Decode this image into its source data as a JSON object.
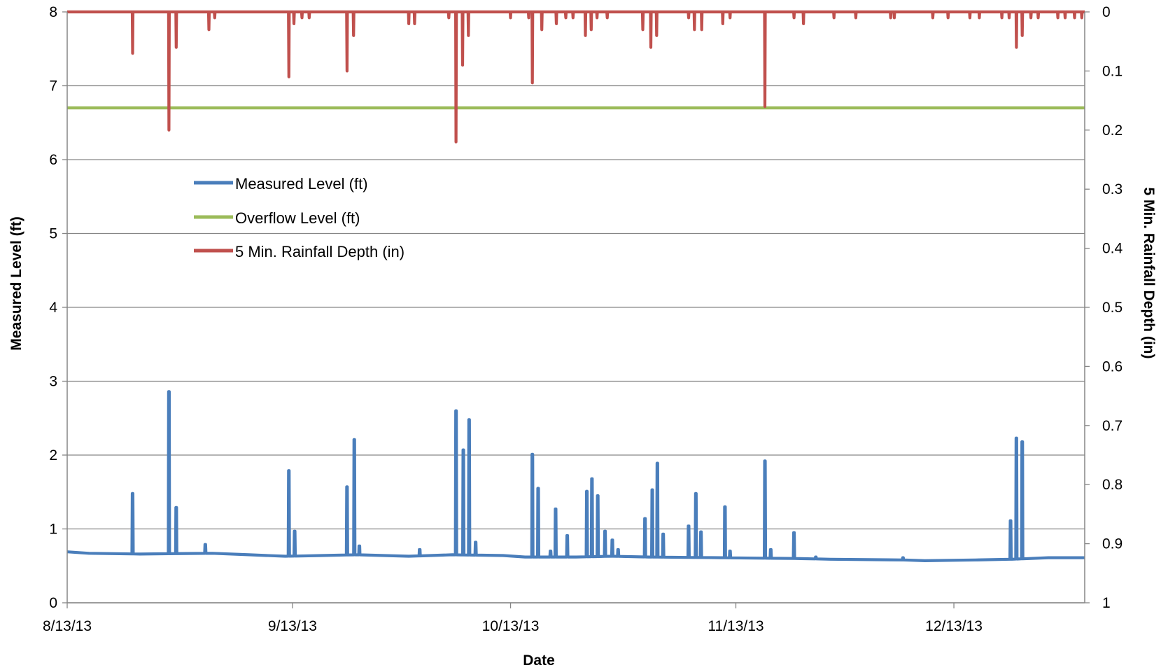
{
  "chart_data": {
    "type": "line",
    "xlabel": "Date",
    "ylabel": "Measured Level (ft)",
    "y2label": "5 Min. Rainfall Depth (in)",
    "x_ticks": [
      "8/13/13",
      "9/13/13",
      "10/13/13",
      "11/13/13",
      "12/13/13"
    ],
    "x_tick_days": [
      0,
      31,
      61,
      92,
      122
    ],
    "xlim_days": [
      0,
      140
    ],
    "ylim": [
      0,
      8
    ],
    "y_ticks": [
      "0",
      "1",
      "2",
      "3",
      "4",
      "5",
      "6",
      "7",
      "8"
    ],
    "y2lim": [
      1,
      0
    ],
    "y2_reversed": true,
    "y2_ticks": [
      "1",
      "0.9",
      "0.8",
      "0.7",
      "0.6",
      "0.5",
      "0.4",
      "0.3",
      "0.2",
      "0.1",
      "0"
    ],
    "grid": true,
    "legend_position": "upper-left-inside",
    "colors": {
      "level": "#4a7ebb",
      "overflow": "#9bbb59",
      "rain": "#c0504d",
      "grid": "#868686"
    },
    "series": [
      {
        "name": "Measured Level (ft)",
        "axis": "left",
        "baseline": [
          [
            0,
            0.69
          ],
          [
            3,
            0.67
          ],
          [
            10,
            0.66
          ],
          [
            20,
            0.67
          ],
          [
            25,
            0.65
          ],
          [
            30,
            0.63
          ],
          [
            35,
            0.64
          ],
          [
            40,
            0.65
          ],
          [
            47,
            0.63
          ],
          [
            53,
            0.65
          ],
          [
            60,
            0.64
          ],
          [
            63,
            0.62
          ],
          [
            70,
            0.62
          ],
          [
            75,
            0.63
          ],
          [
            80,
            0.62
          ],
          [
            90,
            0.61
          ],
          [
            100,
            0.6
          ],
          [
            105,
            0.59
          ],
          [
            115,
            0.58
          ],
          [
            118,
            0.57
          ],
          [
            125,
            0.58
          ],
          [
            130,
            0.59
          ],
          [
            135,
            0.61
          ],
          [
            140,
            0.61
          ]
        ],
        "spikes": [
          [
            9,
            1.48
          ],
          [
            14,
            2.86
          ],
          [
            15,
            1.29
          ],
          [
            19,
            0.79
          ],
          [
            30.5,
            1.79
          ],
          [
            31.3,
            0.97
          ],
          [
            38.5,
            1.57
          ],
          [
            39.5,
            2.21
          ],
          [
            40.2,
            0.77
          ],
          [
            48.5,
            0.72
          ],
          [
            53.5,
            2.6
          ],
          [
            54.5,
            2.07
          ],
          [
            55.3,
            2.48
          ],
          [
            56.2,
            0.82
          ],
          [
            64,
            2.01
          ],
          [
            64.8,
            1.55
          ],
          [
            66.5,
            0.7
          ],
          [
            67.2,
            1.27
          ],
          [
            68.8,
            0.91
          ],
          [
            71.5,
            1.51
          ],
          [
            72.2,
            1.68
          ],
          [
            73,
            1.45
          ],
          [
            74,
            0.97
          ],
          [
            75,
            0.85
          ],
          [
            75.8,
            0.72
          ],
          [
            79.5,
            1.14
          ],
          [
            80.5,
            1.53
          ],
          [
            81.2,
            1.89
          ],
          [
            82,
            0.93
          ],
          [
            85.5,
            1.04
          ],
          [
            86.5,
            1.48
          ],
          [
            87.2,
            0.96
          ],
          [
            90.5,
            1.3
          ],
          [
            91.2,
            0.7
          ],
          [
            96,
            1.92
          ],
          [
            96.8,
            0.72
          ],
          [
            100,
            0.95
          ],
          [
            103,
            0.62
          ],
          [
            115,
            0.61
          ],
          [
            129.8,
            1.11
          ],
          [
            130.6,
            2.23
          ],
          [
            131.4,
            2.18
          ]
        ]
      },
      {
        "name": "Overflow Level (ft)",
        "axis": "left",
        "values": [
          [
            0,
            6.7
          ],
          [
            140,
            6.7
          ]
        ]
      },
      {
        "name": "5 Min. Rainfall Depth (in)",
        "axis": "right",
        "spikes": [
          [
            9,
            0.07
          ],
          [
            14,
            0.2
          ],
          [
            15,
            0.06
          ],
          [
            19.5,
            0.03
          ],
          [
            20.3,
            0.01
          ],
          [
            30.5,
            0.11
          ],
          [
            31.2,
            0.02
          ],
          [
            32.3,
            0.01
          ],
          [
            33.3,
            0.01
          ],
          [
            38.5,
            0.1
          ],
          [
            39.4,
            0.04
          ],
          [
            47,
            0.02
          ],
          [
            47.8,
            0.02
          ],
          [
            52.5,
            0.01
          ],
          [
            53.5,
            0.22
          ],
          [
            54.4,
            0.09
          ],
          [
            55.2,
            0.04
          ],
          [
            61,
            0.01
          ],
          [
            63.5,
            0.01
          ],
          [
            64,
            0.12
          ],
          [
            65.3,
            0.03
          ],
          [
            67.3,
            0.02
          ],
          [
            68.6,
            0.01
          ],
          [
            69.6,
            0.01
          ],
          [
            71.3,
            0.04
          ],
          [
            72.1,
            0.03
          ],
          [
            72.9,
            0.01
          ],
          [
            74.3,
            0.01
          ],
          [
            79.2,
            0.03
          ],
          [
            80.3,
            0.06
          ],
          [
            81.1,
            0.04
          ],
          [
            85.5,
            0.01
          ],
          [
            86.3,
            0.03
          ],
          [
            87.3,
            0.03
          ],
          [
            90.2,
            0.02
          ],
          [
            91.2,
            0.01
          ],
          [
            96,
            0.16
          ],
          [
            100,
            0.01
          ],
          [
            101.3,
            0.02
          ],
          [
            105.5,
            0.01
          ],
          [
            108.5,
            0.01
          ],
          [
            113.3,
            0.01
          ],
          [
            113.8,
            0.01
          ],
          [
            119.1,
            0.01
          ],
          [
            121.2,
            0.01
          ],
          [
            124.2,
            0.01
          ],
          [
            125.5,
            0.01
          ],
          [
            128.6,
            0.01
          ],
          [
            129.6,
            0.01
          ],
          [
            130.6,
            0.06
          ],
          [
            131.4,
            0.04
          ],
          [
            132.6,
            0.01
          ],
          [
            133.6,
            0.01
          ],
          [
            136.3,
            0.01
          ],
          [
            137.3,
            0.01
          ],
          [
            138.6,
            0.01
          ],
          [
            139.6,
            0.01
          ]
        ]
      }
    ]
  }
}
